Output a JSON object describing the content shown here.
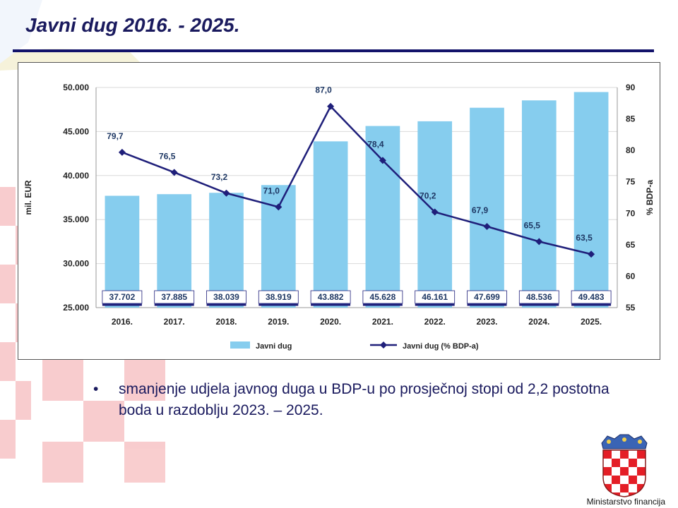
{
  "slide": {
    "title": "Javni dug 2016. - 2025.",
    "bullet_text": "smanjenje udjela javnog duga u BDP-u po prosječnoj stopi od 2,2 postotna boda u razdoblju 2023. – 2025.",
    "footer_org": "Ministarstvo financija"
  },
  "colors": {
    "title": "#1a1a5e",
    "rule": "#12126a",
    "bar": "#86cdee",
    "line": "#1f1f7a",
    "label_text": "#1f3864",
    "bar_label_bg": "#ffffff",
    "bar_label_border": "#1f1f7a",
    "grid": "#d9d9d9",
    "checker_red": "#e41e26"
  },
  "icons": {
    "coat_of_arms": "croatian-coat-of-arms-icon",
    "bullet": "bullet-dot-icon"
  },
  "chart_data": {
    "type": "bar",
    "categories": [
      "2016.",
      "2017.",
      "2018.",
      "2019.",
      "2020.",
      "2021.",
      "2022.",
      "2023.",
      "2024.",
      "2025."
    ],
    "series": [
      {
        "name": "Javni dug",
        "type": "bar",
        "axis": "left",
        "values": [
          37702,
          37885,
          38039,
          38919,
          43882,
          45628,
          46161,
          47699,
          48536,
          49483
        ],
        "labels": [
          "37.702",
          "37.885",
          "38.039",
          "38.919",
          "43.882",
          "45.628",
          "46.161",
          "47.699",
          "48.536",
          "49.483"
        ]
      },
      {
        "name": "Javni dug (% BDP-a)",
        "type": "line",
        "axis": "right",
        "values": [
          79.7,
          76.5,
          73.2,
          71.0,
          87.0,
          78.4,
          70.2,
          67.9,
          65.5,
          63.5
        ],
        "labels": [
          "79,7",
          "76,5",
          "73,2",
          "71,0",
          "87,0",
          "78,4",
          "70,2",
          "67,9",
          "65,5",
          "63,5"
        ]
      }
    ],
    "ylabel": "mil. EUR",
    "y2label": "% BDP-a",
    "ylim": [
      25000,
      50000
    ],
    "y2lim": [
      55,
      90
    ],
    "yticks": [
      "25.000",
      "30.000",
      "35.000",
      "40.000",
      "45.000",
      "50.000"
    ],
    "y2ticks": [
      "55",
      "60",
      "65",
      "70",
      "75",
      "80",
      "85",
      "90"
    ],
    "grid": true,
    "legend_position": "bottom"
  }
}
